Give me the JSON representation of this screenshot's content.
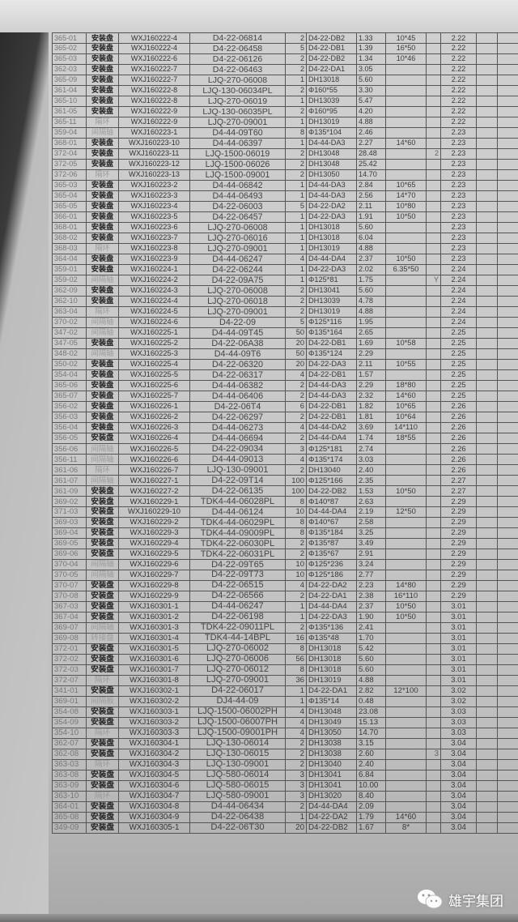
{
  "columns": [
    "code",
    "type",
    "order_no",
    "part_no",
    "qty",
    "material",
    "weight",
    "size",
    "extra",
    "date"
  ],
  "rows": [
    [
      "365-01",
      "安装盘",
      "WXJ160222-4",
      "D4-22-06814",
      "2",
      "D4-22-DB2",
      "1.33",
      "10*45",
      "",
      "2.22"
    ],
    [
      "365-02",
      "安装盘",
      "WXJ160222-4",
      "D4-22-06458",
      "5",
      "D4-22-DB1",
      "1.39",
      "16*50",
      "",
      "2.22"
    ],
    [
      "365-03",
      "安装盘",
      "WXJ160222-6",
      "D4-22-06126",
      "2",
      "D4-22-DB2",
      "1.34",
      "10*46",
      "",
      "2.22"
    ],
    [
      "362-03",
      "安装盘",
      "WXJ160222-7",
      "D4-22-06463",
      "2",
      "D4-22-DA1",
      "3.05",
      "",
      "",
      "2.22"
    ],
    [
      "365-09",
      "安装盘",
      "WXJ160222-7",
      "LJQ-270-06008",
      "1",
      "DH13018",
      "5.60",
      "",
      "",
      "2.22"
    ],
    [
      "361-04",
      "安装盘",
      "WXJ160222-8",
      "LJQ-130-06034PL",
      "2",
      "Φ160*55",
      "3.30",
      "",
      "",
      "2.22"
    ],
    [
      "365-10",
      "安装盘",
      "WXJ160222-8",
      "LJQ-270-06019",
      "1",
      "DH13039",
      "5.47",
      "",
      "",
      "2.22"
    ],
    [
      "361-05",
      "安装盘",
      "WXJ160222-9",
      "LJQ-130-06035PL",
      "2",
      "Φ160*95",
      "4.20",
      "",
      "",
      "2.22"
    ],
    [
      "365-11",
      "隔环",
      "WXJ160222-9",
      "LJQ-270-09001",
      "1",
      "DH13019",
      "4.88",
      "",
      "",
      "2.22"
    ],
    [
      "359-04",
      "间隔轴",
      "WXJ160223-1",
      "D4-44-09T60",
      "8",
      "Φ135*104",
      "2.46",
      "",
      "",
      "2.23"
    ],
    [
      "368-01",
      "安装盘",
      "WXJ160223-10",
      "D4-44-06397",
      "1",
      "D4-44-DA3",
      "2.27",
      "14*60",
      "",
      "2.23"
    ],
    [
      "372-04",
      "安装盘",
      "WXJ160223-11",
      "LJQ-1500-06019",
      "2",
      "DH13048",
      "28.48",
      "",
      "2",
      "2.23"
    ],
    [
      "372-05",
      "安装盘",
      "WXJ160223-12",
      "LJQ-1500-06026",
      "2",
      "DH13048",
      "25.42",
      "",
      "",
      "2.23"
    ],
    [
      "372-06",
      "隔环",
      "WXJ160223-13",
      "LJQ-1500-09001",
      "2",
      "DH13050",
      "14.70",
      "",
      "",
      "2.23"
    ],
    [
      "365-03",
      "安装盘",
      "WXJ160223-2",
      "D4-44-06842",
      "1",
      "D4-44-DA3",
      "2.84",
      "10*65",
      "",
      "2.23"
    ],
    [
      "365-04",
      "安装盘",
      "WXJ160223-3",
      "D4-44-06493",
      "1",
      "D4-44-DA3",
      "2.56",
      "14*70",
      "",
      "2.23"
    ],
    [
      "365-05",
      "安装盘",
      "WXJ160223-4",
      "D4-22-06003",
      "5",
      "D4-22-DA2",
      "2.11",
      "10*80",
      "",
      "2.23"
    ],
    [
      "366-01",
      "安装盘",
      "WXJ160223-5",
      "D4-22-06457",
      "1",
      "D4-22-DA3",
      "1.91",
      "10*50",
      "",
      "2.23"
    ],
    [
      "368-01",
      "安装盘",
      "WXJ160223-6",
      "LJQ-270-06008",
      "1",
      "DH13018",
      "5.60",
      "",
      "",
      "2.23"
    ],
    [
      "368-02",
      "安装盘",
      "WXJ160223-7",
      "LJQ-270-06016",
      "1",
      "DH13018",
      "6.04",
      "",
      "",
      "2.23"
    ],
    [
      "368-03",
      "隔环",
      "WXJ160223-8",
      "LJQ-270-09001",
      "1",
      "DH13019",
      "4.88",
      "",
      "",
      "2.23"
    ],
    [
      "364-04",
      "安装盘",
      "WXJ160223-9",
      "D4-44-06247",
      "4",
      "D4-44-DA4",
      "2.37",
      "10*50",
      "",
      "2.23"
    ],
    [
      "359-01",
      "安装盘",
      "WXJ160224-1",
      "D4-22-06244",
      "1",
      "D4-22-DA3",
      "2.02",
      "6.35*50",
      "",
      "2.24"
    ],
    [
      "359-02",
      "间隔轴",
      "WXJ160224-2",
      "D4-22-09A75",
      "1",
      "Φ125*81",
      "1.75",
      "",
      "Y",
      "2.24"
    ],
    [
      "362-09",
      "安装盘",
      "WXJ160224-3",
      "LJQ-270-06008",
      "2",
      "DH13041",
      "5.60",
      "",
      "",
      "2.24"
    ],
    [
      "362-10",
      "安装盘",
      "WXJ160224-4",
      "LJQ-270-06018",
      "2",
      "DH13039",
      "4.78",
      "",
      "",
      "2.24"
    ],
    [
      "363-04",
      "隔环",
      "WXJ160224-5",
      "LJQ-270-09001",
      "2",
      "DH13019",
      "4.88",
      "",
      "",
      "2.24"
    ],
    [
      "370-02",
      "间隔轴",
      "WXJ160224-6",
      "D4-22-09",
      "5",
      "Φ125*116",
      "1.95",
      "",
      "",
      "2.24"
    ],
    [
      "347-02",
      "间隔轴",
      "WXJ160225-1",
      "D4-44-09T45",
      "50",
      "Φ135*164",
      "2.65",
      "",
      "",
      "2.25"
    ],
    [
      "347-05",
      "安装盘",
      "WXJ160225-2",
      "D4-22-06A38",
      "20",
      "D4-22-DB1",
      "1.69",
      "10*58",
      "",
      "2.25"
    ],
    [
      "348-02",
      "间隔轴",
      "WXJ160225-3",
      "D4-44-09T6",
      "50",
      "Φ135*124",
      "2.29",
      "",
      "",
      "2.25"
    ],
    [
      "350-02",
      "安装盘",
      "WXJ160225-4",
      "D4-22-06320",
      "20",
      "D4-22-DA3",
      "2.11",
      "10*55",
      "",
      "2.25"
    ],
    [
      "354-04",
      "安装盘",
      "WXJ160225-5",
      "D4-22-06317",
      "4",
      "D4-22-DB1",
      "1.57",
      "",
      "",
      "2.25"
    ],
    [
      "365-06",
      "安装盘",
      "WXJ160225-6",
      "D4-44-06382",
      "2",
      "D4-44-DA3",
      "2.29",
      "18*80",
      "",
      "2.25"
    ],
    [
      "365-07",
      "安装盘",
      "WXJ160225-7",
      "D4-44-06406",
      "2",
      "D4-44-DA3",
      "2.32",
      "14*60",
      "",
      "2.25"
    ],
    [
      "356-02",
      "安装盘",
      "WXJ160226-1",
      "D4-22-06T4",
      "6",
      "D4-22-DB1",
      "1.82",
      "10*65",
      "",
      "2.26"
    ],
    [
      "356-03",
      "安装盘",
      "WXJ160226-2",
      "D4-22-06297",
      "2",
      "D4-22-DB1",
      "1.81",
      "10*64",
      "",
      "2.26"
    ],
    [
      "356-04",
      "安装盘",
      "WXJ160226-3",
      "D4-44-06273",
      "4",
      "D4-44-DA2",
      "3.69",
      "14*110",
      "",
      "2.26"
    ],
    [
      "356-05",
      "安装盘",
      "WXJ160226-4",
      "D4-44-06694",
      "2",
      "D4-44-DA4",
      "1.74",
      "18*55",
      "",
      "2.26"
    ],
    [
      "356-06",
      "间隔轴",
      "WXJ160226-5",
      "D4-22-09034",
      "3",
      "Φ125*181",
      "2.74",
      "",
      "",
      "2.26"
    ],
    [
      "356-11",
      "间隔轴",
      "WXJ160226-6",
      "D4-44-09013",
      "4",
      "Φ135*174",
      "3.03",
      "",
      "",
      "2.26"
    ],
    [
      "361-06",
      "隔环",
      "WXJ160226-7",
      "LJQ-130-09001",
      "2",
      "DH13040",
      "2.40",
      "",
      "",
      "2.26"
    ],
    [
      "361-07",
      "间隔轴",
      "WXJ160227-1",
      "D4-22-09T14",
      "100",
      "Φ125*166",
      "2.35",
      "",
      "",
      "2.27"
    ],
    [
      "361-09",
      "安装盘",
      "WXJ160227-2",
      "D4-22-06135",
      "100",
      "D4-22-DB2",
      "1.53",
      "10*50",
      "",
      "2.27"
    ],
    [
      "369-02",
      "安装盘",
      "WXJ160229-1",
      "TDK4-44-06028PL",
      "8",
      "Φ140*87",
      "2.63",
      "",
      "",
      "2.29"
    ],
    [
      "371-03",
      "安装盘",
      "WXJ160229-10",
      "D4-44-06124",
      "10",
      "D4-44-DA4",
      "2.19",
      "12*50",
      "",
      "2.29"
    ],
    [
      "369-03",
      "安装盘",
      "WXJ160229-2",
      "TDK4-44-06029PL",
      "8",
      "Φ140*67",
      "2.58",
      "",
      "",
      "2.29"
    ],
    [
      "369-04",
      "安装盘",
      "WXJ160229-3",
      "TDK4-44-09009PL",
      "8",
      "Φ135*184",
      "3.25",
      "",
      "",
      "2.29"
    ],
    [
      "369-05",
      "安装盘",
      "WXJ160229-4",
      "TDK4-22-06030PL",
      "2",
      "Φ135*87",
      "3.49",
      "",
      "",
      "2.29"
    ],
    [
      "369-06",
      "安装盘",
      "WXJ160229-5",
      "TDK4-22-06031PL",
      "2",
      "Φ135*67",
      "2.91",
      "",
      "",
      "2.29"
    ],
    [
      "370-04",
      "间隔轴",
      "WXJ160229-6",
      "D4-22-09T65",
      "10",
      "Φ125*236",
      "3.24",
      "",
      "",
      "2.29"
    ],
    [
      "370-05",
      "间隔轴",
      "WXJ160229-7",
      "D4-22-09T73",
      "10",
      "Φ125*186",
      "2.77",
      "",
      "",
      "2.29"
    ],
    [
      "370-07",
      "安装盘",
      "WXJ160229-8",
      "D4-22-06515",
      "4",
      "D4-22-DA2",
      "2.23",
      "14*80",
      "",
      "2.29"
    ],
    [
      "370-08",
      "安装盘",
      "WXJ160229-9",
      "D4-22-06566",
      "2",
      "D4-22-DA1",
      "2.38",
      "16*110",
      "",
      "2.29"
    ],
    [
      "367-03",
      "安装盘",
      "WXJ160301-1",
      "D4-44-06247",
      "1",
      "D4-44-DA4",
      "2.37",
      "10*50",
      "",
      "3.01"
    ],
    [
      "367-04",
      "安装盘",
      "WXJ160301-2",
      "D4-22-06198",
      "1",
      "D4-22-DA3",
      "1.90",
      "10*50",
      "",
      "3.01"
    ],
    [
      "369-07",
      "间隔轴",
      "WXJ160301-3",
      "TDK4-22-09011PL",
      "2",
      "Φ135*136",
      "2.41",
      "",
      "",
      "3.01"
    ],
    [
      "369-08",
      "转接盘",
      "WXJ160301-4",
      "TDK4-44-14BPL",
      "16",
      "Φ135*48",
      "1.70",
      "",
      "",
      "3.01"
    ],
    [
      "372-01",
      "安装盘",
      "WXJ160301-5",
      "LJQ-270-06002",
      "8",
      "DH13018",
      "5.42",
      "",
      "",
      "3.01"
    ],
    [
      "372-02",
      "安装盘",
      "WXJ160301-6",
      "LJQ-270-06006",
      "56",
      "DH13018",
      "5.60",
      "",
      "",
      "3.01"
    ],
    [
      "372-03",
      "安装盘",
      "WXJ160301-7",
      "LJQ-270-06012",
      "8",
      "DH13018",
      "5.60",
      "",
      "",
      "3.01"
    ],
    [
      "372-07",
      "隔环",
      "WXJ160301-8",
      "LJQ-270-09001",
      "36",
      "DH13019",
      "4.88",
      "",
      "",
      "3.01"
    ],
    [
      "341-01",
      "安装盘",
      "WXJ160302-1",
      "D4-22-06017",
      "1",
      "D4-22-DA1",
      "2.82",
      "12*100",
      "",
      "3.02"
    ],
    [
      "369-01",
      "间隔板",
      "WXJ160302-2",
      "DJ4-44-09",
      "1",
      "Φ135*14",
      "0.48",
      "",
      "",
      "3.02"
    ],
    [
      "354-08",
      "安装盘",
      "WXJ160303-1",
      "LJQ-1500-06002PH",
      "4",
      "DH13048",
      "23.08",
      "",
      "",
      "3.03"
    ],
    [
      "354-09",
      "安装盘",
      "WXJ160303-2",
      "LJQ-1500-06007PH",
      "4",
      "DH13049",
      "15.13",
      "",
      "",
      "3.03"
    ],
    [
      "354-10",
      "隔环",
      "WXJ160303-3",
      "LJQ-1500-09001PH",
      "4",
      "DH13050",
      "14.70",
      "",
      "",
      "3.03"
    ],
    [
      "362-07",
      "安装盘",
      "WXJ160304-1",
      "LJQ-130-06014",
      "2",
      "DH13038",
      "3.15",
      "",
      "",
      "3.04"
    ],
    [
      "362-08",
      "安装盘",
      "WXJ160304-2",
      "LJQ-130-06015",
      "2",
      "DH13038",
      "2.60",
      "",
      "3",
      "3.04"
    ],
    [
      "363-03",
      "隔环",
      "WXJ160304-3",
      "LJQ-130-09001",
      "2",
      "DH13040",
      "2.40",
      "",
      "",
      "3.04"
    ],
    [
      "363-08",
      "安装盘",
      "WXJ160304-5",
      "LJQ-580-06014",
      "3",
      "DH13041",
      "6.84",
      "",
      "",
      "3.04"
    ],
    [
      "363-09",
      "安装盘",
      "WXJ160304-6",
      "LJQ-580-06015",
      "3",
      "DH13041",
      "10.00",
      "",
      "",
      "3.04"
    ],
    [
      "363-10",
      "隔环",
      "WXJ160304-7",
      "LJQ-580-09001",
      "3",
      "DH13020",
      "8.40",
      "",
      "",
      "3.04"
    ],
    [
      "364-01",
      "安装盘",
      "WXJ160304-8",
      "D4-44-06434",
      "2",
      "D4-44-DA4",
      "2.09",
      "",
      "",
      "3.04"
    ],
    [
      "365-08",
      "安装盘",
      "WXJ160304-9",
      "D4-22-06438",
      "1",
      "D4-22-DA2",
      "1.79",
      "14*60",
      "",
      "3.04"
    ],
    [
      "349-09",
      "安装盘",
      "WXJ160305-1",
      "D4-22-06T30",
      "20",
      "D4-22-DB2",
      "1.67",
      "8*",
      "",
      "3.04"
    ]
  ],
  "highlight_type": "安装盘",
  "watermark": {
    "icon": "wechat-icon",
    "text": "雄宇集团"
  }
}
